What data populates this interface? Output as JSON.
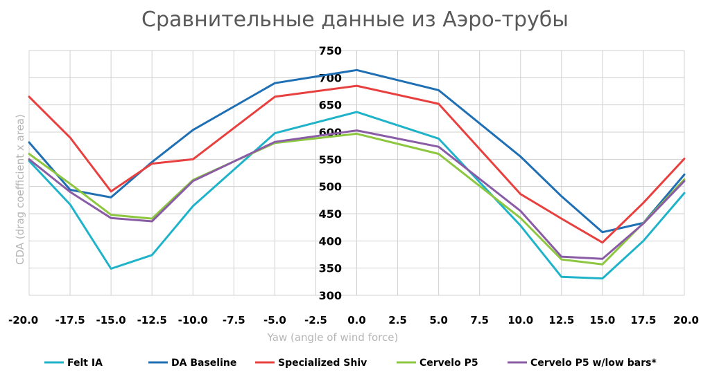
{
  "chart_data": {
    "type": "line",
    "title": "Сравнительные данные из Аэро-трубы",
    "xlabel": "Yaw (angle of wind force)",
    "ylabel": "CDA (drag coefficient x area)",
    "x": [
      -20.0,
      -17.5,
      -15.0,
      -12.5,
      -10.0,
      -7.5,
      -5.0,
      -2.5,
      0.0,
      2.5,
      5.0,
      7.5,
      10.0,
      12.5,
      15.0,
      17.5,
      20.0
    ],
    "x_tick_labels": [
      "-20.0",
      "-17.5",
      "-15.0",
      "-12.5",
      "-10.0",
      "-7.5",
      "-5.0",
      "-2.5",
      "0.0",
      "2.5",
      "5.0",
      "7.5",
      "10.0",
      "12.5",
      "15.0",
      "17.5",
      "20.0"
    ],
    "xlim": [
      -20,
      20
    ],
    "ylim": [
      300,
      750
    ],
    "y_ticks": [
      300,
      350,
      400,
      450,
      500,
      550,
      600,
      650,
      700,
      750
    ],
    "y_tick_labels": [
      "300",
      "350",
      "400",
      "450",
      "500",
      "550",
      "600",
      "650",
      "700",
      "750"
    ],
    "grid": true,
    "legend_position": "bottom",
    "series": [
      {
        "name": "Felt IA",
        "color": "#1fb3c9",
        "x": [
          -20,
          -17.5,
          -15,
          -12.5,
          -10,
          -5,
          0,
          5,
          10,
          12.5,
          15,
          17.5,
          20
        ],
        "y": [
          547,
          467,
          349,
          374,
          464,
          598,
          637,
          588,
          428,
          334,
          331,
          400,
          488
        ]
      },
      {
        "name": "DA Baseline",
        "color": "#1f6fb5",
        "x": [
          -20,
          -17.5,
          -15,
          -12.5,
          -10,
          -5,
          0,
          5,
          10,
          12.5,
          15,
          17.5,
          20
        ],
        "y": [
          581,
          494,
          480,
          545,
          604,
          690,
          714,
          677,
          555,
          482,
          416,
          433,
          522
        ]
      },
      {
        "name": "Specialized Shiv",
        "color": "#e8403f",
        "x": [
          -20,
          -17.5,
          -15,
          -12.5,
          -10,
          -5,
          0,
          5,
          10,
          12.5,
          15,
          17.5,
          20
        ],
        "y": [
          665,
          590,
          491,
          542,
          550,
          665,
          685,
          652,
          486,
          441,
          397,
          470,
          551
        ]
      },
      {
        "name": "Cervelo P5",
        "color": "#8dc63f",
        "x": [
          -20,
          -17.5,
          -15,
          -12.5,
          -10,
          -5,
          0,
          5,
          10,
          12.5,
          15,
          17.5,
          20
        ],
        "y": [
          560,
          505,
          448,
          441,
          512,
          580,
          597,
          560,
          442,
          366,
          357,
          433,
          513
        ]
      },
      {
        "name": "Cervelo P5 w/low bars*",
        "color": "#8a5ca6",
        "x": [
          -20,
          -17.5,
          -15,
          -12.5,
          -10,
          -5,
          0,
          5,
          10,
          12.5,
          15,
          17.5,
          20
        ],
        "y": [
          550,
          490,
          442,
          436,
          510,
          582,
          603,
          573,
          455,
          371,
          367,
          432,
          510
        ]
      }
    ]
  }
}
